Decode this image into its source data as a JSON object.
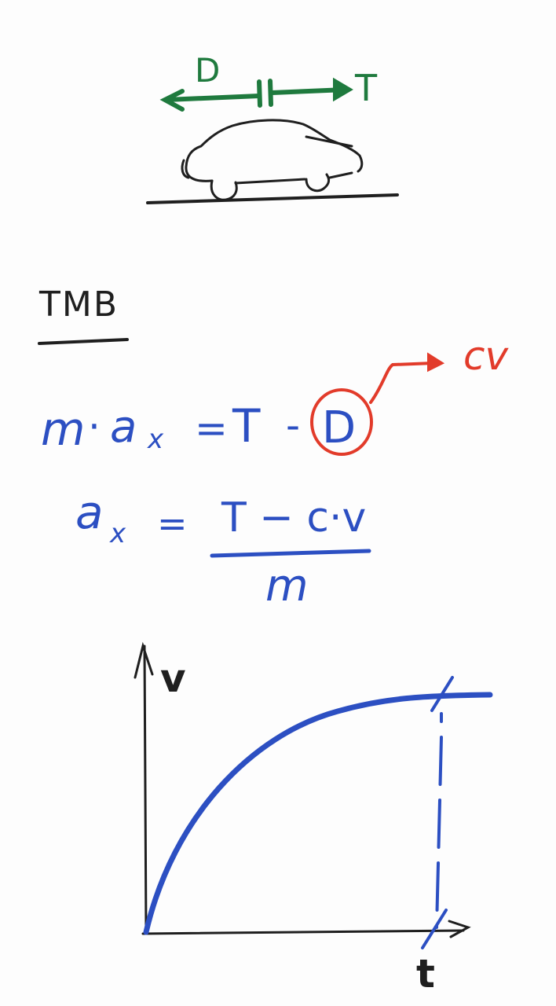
{
  "colors": {
    "ink_black": "#1f1f1f",
    "ink_green": "#1f7a3e",
    "ink_blue": "#2c4fc2",
    "ink_red": "#e23b2a"
  },
  "car_diagram": {
    "drag_label": "D",
    "thrust_label": "T"
  },
  "heading": {
    "text": "TMB"
  },
  "equation1": {
    "lhs_m": "m",
    "lhs_dot": "·",
    "lhs_a": "a",
    "lhs_sub": "x",
    "eq": "=",
    "thrust": "T",
    "minus": "-",
    "drag": "D",
    "annotation": "cv"
  },
  "equation2": {
    "lhs_a": "a",
    "lhs_sub": "x",
    "eq": "=",
    "numerator": "T − c·v",
    "denominator": "m"
  },
  "graph": {
    "y_axis_label": "v",
    "x_axis_label": "t"
  }
}
